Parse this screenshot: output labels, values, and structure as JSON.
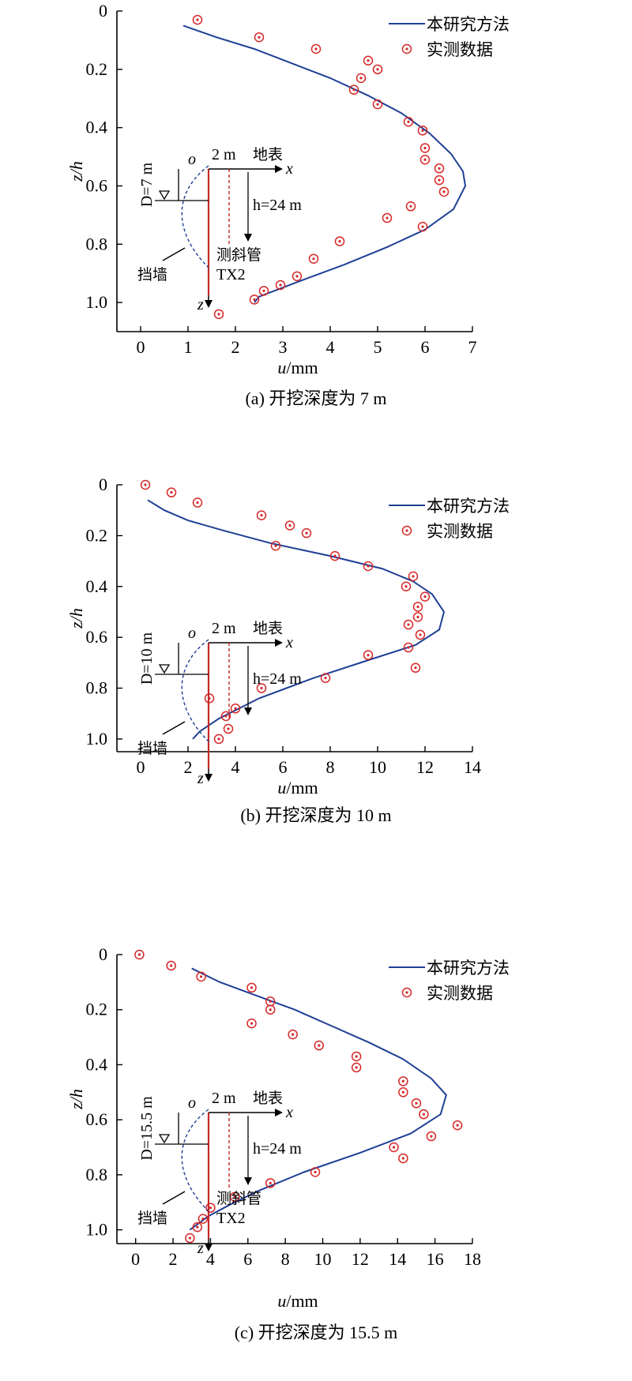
{
  "legend": {
    "model": "本研究方法",
    "measured": "实测数据"
  },
  "colors": {
    "model": "#1f3f95",
    "measured": "#d62828"
  },
  "chart_data": [
    {
      "type": "scatter",
      "caption": "(a) 开挖深度为 7 m",
      "xlabel_var": "u",
      "xlabel_unit": "/mm",
      "ylabel": "z/h",
      "xlim": [
        -0.5,
        7
      ],
      "ylim": [
        0,
        1.1
      ],
      "xticks": [
        0,
        1,
        2,
        3,
        4,
        5,
        6,
        7
      ],
      "yticks": [
        0,
        0.2,
        0.4,
        0.6,
        0.8,
        1.0
      ],
      "ytick_labels": [
        "0",
        "0.2",
        "0.4",
        "0.6",
        "0.8",
        "1.0"
      ],
      "inset": {
        "d_label": "D=7 m",
        "spacing": "2 m",
        "ground": "地表",
        "h_label": "h=24 m",
        "wall": "挡墙",
        "inclinometer": "测斜管",
        "tag": "TX2",
        "origin": "o",
        "x_axis": "x",
        "z_axis": "z"
      },
      "series": [
        {
          "name": "本研究方法",
          "style": "line",
          "points": [
            [
              0.9,
              0.05
            ],
            [
              1.6,
              0.09
            ],
            [
              2.4,
              0.13
            ],
            [
              3.2,
              0.18
            ],
            [
              4.0,
              0.23
            ],
            [
              4.8,
              0.29
            ],
            [
              5.5,
              0.35
            ],
            [
              6.1,
              0.42
            ],
            [
              6.55,
              0.49
            ],
            [
              6.8,
              0.55
            ],
            [
              6.85,
              0.6
            ],
            [
              6.6,
              0.68
            ],
            [
              6.0,
              0.75
            ],
            [
              5.2,
              0.81
            ],
            [
              4.3,
              0.87
            ],
            [
              3.3,
              0.93
            ],
            [
              2.5,
              0.98
            ],
            [
              2.4,
              1.0
            ]
          ]
        },
        {
          "name": "实测数据",
          "style": "marker",
          "points": [
            [
              1.2,
              0.03
            ],
            [
              2.5,
              0.09
            ],
            [
              3.7,
              0.13
            ],
            [
              4.8,
              0.17
            ],
            [
              5.0,
              0.2
            ],
            [
              4.65,
              0.23
            ],
            [
              4.5,
              0.27
            ],
            [
              5.0,
              0.32
            ],
            [
              5.65,
              0.38
            ],
            [
              5.95,
              0.41
            ],
            [
              6.0,
              0.47
            ],
            [
              6.0,
              0.51
            ],
            [
              6.3,
              0.54
            ],
            [
              6.3,
              0.58
            ],
            [
              6.4,
              0.62
            ],
            [
              5.7,
              0.67
            ],
            [
              5.2,
              0.71
            ],
            [
              5.95,
              0.74
            ],
            [
              4.2,
              0.79
            ],
            [
              3.65,
              0.85
            ],
            [
              3.3,
              0.91
            ],
            [
              2.95,
              0.94
            ],
            [
              2.6,
              0.96
            ],
            [
              2.4,
              0.99
            ],
            [
              1.65,
              1.04
            ]
          ]
        }
      ]
    },
    {
      "type": "scatter",
      "caption": "(b) 开挖深度为 10 m",
      "xlabel_var": "u",
      "xlabel_unit": "/mm",
      "ylabel": "z/h",
      "xlim": [
        -1,
        14
      ],
      "ylim": [
        0,
        1.05
      ],
      "xticks": [
        0,
        2,
        4,
        6,
        8,
        10,
        12,
        14
      ],
      "yticks": [
        0,
        0.2,
        0.4,
        0.6,
        0.8,
        1.0
      ],
      "ytick_labels": [
        "0",
        "0.2",
        "0.4",
        "0.6",
        "0.8",
        "1.0"
      ],
      "inset": {
        "d_label": "D=10 m",
        "spacing": "2 m",
        "ground": "地表",
        "h_label": "h=24 m",
        "wall": "挡墙",
        "inclinometer": "",
        "tag": "",
        "origin": "o",
        "x_axis": "x",
        "z_axis": "z"
      },
      "series": [
        {
          "name": "本研究方法",
          "style": "line",
          "points": [
            [
              0.3,
              0.06
            ],
            [
              1.0,
              0.1
            ],
            [
              2.0,
              0.14
            ],
            [
              3.5,
              0.18
            ],
            [
              5.5,
              0.23
            ],
            [
              8.0,
              0.28
            ],
            [
              10.2,
              0.33
            ],
            [
              11.5,
              0.38
            ],
            [
              12.3,
              0.43
            ],
            [
              12.8,
              0.5
            ],
            [
              12.6,
              0.57
            ],
            [
              11.6,
              0.63
            ],
            [
              9.6,
              0.69
            ],
            [
              7.3,
              0.76
            ],
            [
              5.0,
              0.84
            ],
            [
              3.3,
              0.92
            ],
            [
              2.5,
              0.97
            ],
            [
              2.2,
              1.0
            ]
          ]
        },
        {
          "name": "实测数据",
          "style": "marker",
          "points": [
            [
              0.2,
              0.0
            ],
            [
              1.3,
              0.03
            ],
            [
              2.4,
              0.07
            ],
            [
              5.1,
              0.12
            ],
            [
              6.3,
              0.16
            ],
            [
              7.0,
              0.19
            ],
            [
              5.7,
              0.24
            ],
            [
              8.2,
              0.28
            ],
            [
              9.6,
              0.32
            ],
            [
              11.5,
              0.36
            ],
            [
              11.2,
              0.4
            ],
            [
              12.0,
              0.44
            ],
            [
              11.7,
              0.48
            ],
            [
              11.7,
              0.52
            ],
            [
              11.3,
              0.55
            ],
            [
              11.8,
              0.59
            ],
            [
              11.3,
              0.64
            ],
            [
              9.6,
              0.67
            ],
            [
              11.6,
              0.72
            ],
            [
              7.8,
              0.76
            ],
            [
              5.1,
              0.8
            ],
            [
              2.9,
              0.84
            ],
            [
              4.0,
              0.88
            ],
            [
              3.6,
              0.91
            ],
            [
              3.7,
              0.96
            ],
            [
              3.3,
              1.0
            ]
          ]
        }
      ]
    },
    {
      "type": "scatter",
      "caption": "(c) 开挖深度为 15.5 m",
      "xlabel_var": "u",
      "xlabel_unit": "/mm",
      "ylabel": "z/h",
      "xlim": [
        -1,
        18
      ],
      "ylim": [
        0,
        1.05
      ],
      "xticks": [
        0,
        2,
        4,
        6,
        8,
        10,
        12,
        14,
        16,
        18
      ],
      "yticks": [
        0,
        0.2,
        0.4,
        0.6,
        0.8,
        1.0
      ],
      "ytick_labels": [
        "0",
        "0.2",
        "0.4",
        "0.6",
        "0.8",
        "1.0"
      ],
      "inset": {
        "d_label": "D=15.5 m",
        "spacing": "2 m",
        "ground": "地表",
        "h_label": "h=24 m",
        "wall": "挡墙",
        "inclinometer": "测斜管",
        "tag": "TX2",
        "origin": "o",
        "x_axis": "x",
        "z_axis": "z"
      },
      "series": [
        {
          "name": "本研究方法",
          "style": "line",
          "points": [
            [
              3.0,
              0.05
            ],
            [
              4.5,
              0.1
            ],
            [
              6.5,
              0.15
            ],
            [
              8.5,
              0.2
            ],
            [
              10.5,
              0.26
            ],
            [
              12.5,
              0.32
            ],
            [
              14.3,
              0.38
            ],
            [
              15.8,
              0.45
            ],
            [
              16.6,
              0.51
            ],
            [
              16.3,
              0.58
            ],
            [
              14.7,
              0.65
            ],
            [
              12.0,
              0.72
            ],
            [
              9.0,
              0.79
            ],
            [
              6.5,
              0.86
            ],
            [
              5.0,
              0.91
            ],
            [
              3.9,
              0.95
            ],
            [
              3.3,
              0.98
            ],
            [
              2.9,
              1.0
            ]
          ]
        },
        {
          "name": "实测数据",
          "style": "marker",
          "points": [
            [
              0.2,
              0.0
            ],
            [
              1.9,
              0.04
            ],
            [
              3.5,
              0.08
            ],
            [
              6.2,
              0.12
            ],
            [
              7.2,
              0.17
            ],
            [
              7.2,
              0.2
            ],
            [
              6.2,
              0.25
            ],
            [
              8.4,
              0.29
            ],
            [
              9.8,
              0.33
            ],
            [
              11.8,
              0.37
            ],
            [
              11.8,
              0.41
            ],
            [
              14.3,
              0.46
            ],
            [
              14.3,
              0.5
            ],
            [
              15.0,
              0.54
            ],
            [
              15.4,
              0.58
            ],
            [
              17.2,
              0.62
            ],
            [
              15.8,
              0.66
            ],
            [
              13.8,
              0.7
            ],
            [
              14.3,
              0.74
            ],
            [
              9.6,
              0.79
            ],
            [
              7.2,
              0.83
            ],
            [
              5.3,
              0.88
            ],
            [
              4.0,
              0.92
            ],
            [
              3.6,
              0.96
            ],
            [
              3.3,
              0.99
            ],
            [
              2.9,
              1.03
            ]
          ]
        }
      ]
    }
  ]
}
